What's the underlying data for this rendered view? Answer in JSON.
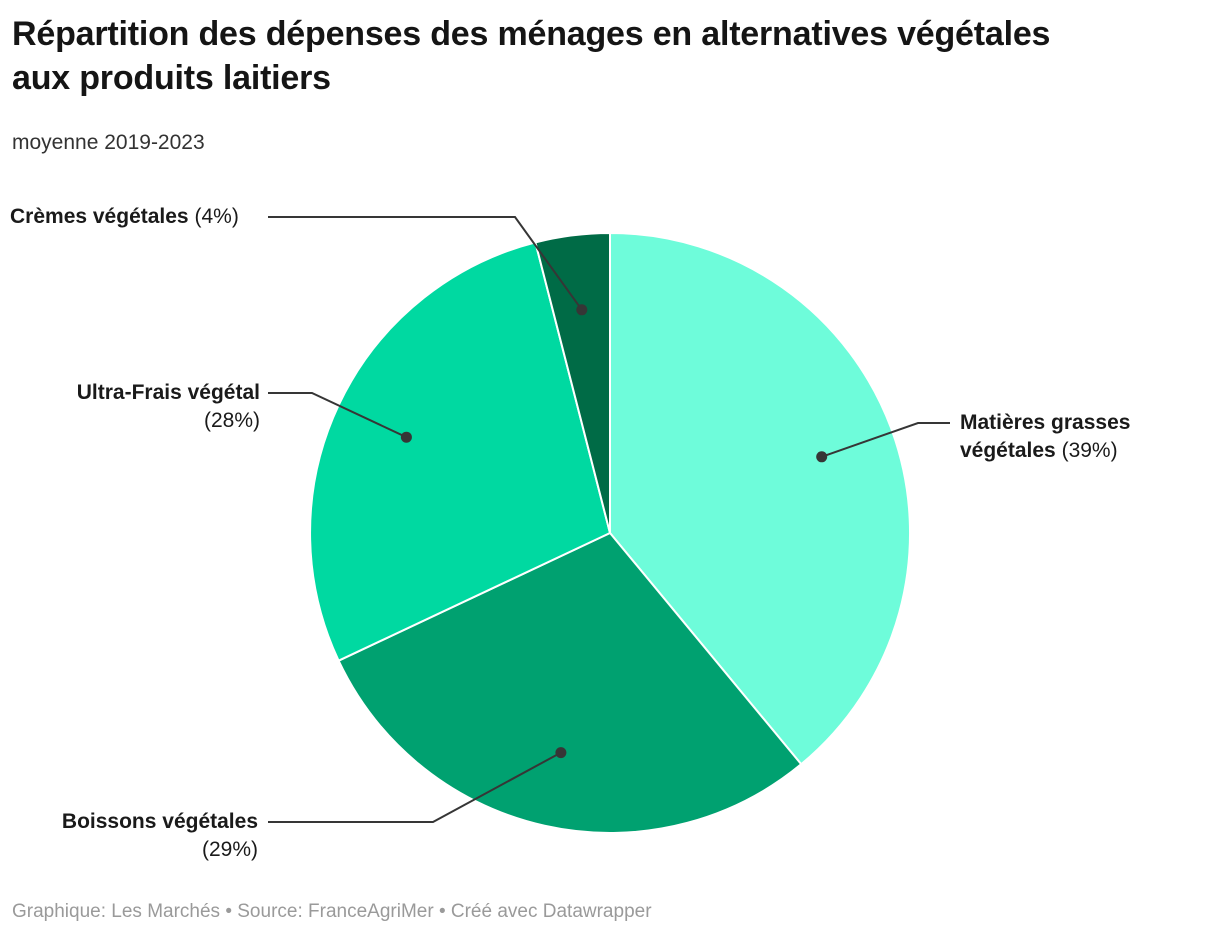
{
  "header": {
    "title": "Répartition des dépenses des ménages en alternatives végétales aux produits laitiers",
    "subtitle": "moyenne 2019-2023"
  },
  "footer": {
    "text": "Graphique: Les Marchés • Source: FranceAgriMer • Créé avec Datawrapper"
  },
  "colors": {
    "background": "#ffffff",
    "title": "#151515",
    "subtitle": "#333333",
    "footer": "#9a9a9a",
    "leader_line": "#363636",
    "slice_border": "#ffffff"
  },
  "chart_data": {
    "type": "pie",
    "title": "Répartition des dépenses des ménages en alternatives végétales aux produits laitiers",
    "subtitle": "moyenne 2019-2023",
    "start_angle_deg": 0,
    "direction": "clockwise",
    "legend_position": "none",
    "slices": [
      {
        "name": "Matières grasses végétales",
        "name_line1": "Matières grasses",
        "name_line2": "végétales",
        "pct_text": "(39%)",
        "value": 39,
        "color": "#6efcda"
      },
      {
        "name": "Boissons végétales",
        "pct_text": "(29%)",
        "value": 29,
        "color": "#00a170"
      },
      {
        "name": "Ultra-Frais végétal",
        "pct_text": "(28%)",
        "value": 28,
        "color": "#00d9a1"
      },
      {
        "name": "Crèmes végétales",
        "pct_text": "(4%)",
        "value": 4,
        "color": "#006b46"
      }
    ]
  }
}
